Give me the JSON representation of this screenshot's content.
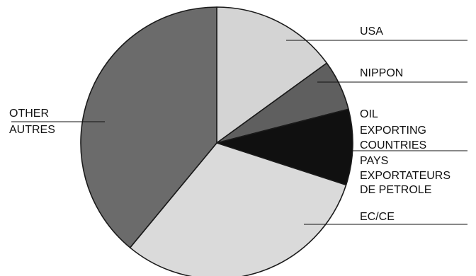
{
  "chart_data": {
    "type": "pie",
    "title": "",
    "start_angle_deg": 0,
    "direction": "clockwise",
    "slices": [
      {
        "labels": [
          "USA"
        ],
        "value": 15,
        "color": "#d4d4d4"
      },
      {
        "labels": [
          "NIPPON"
        ],
        "value": 6,
        "color": "#5f5f5f"
      },
      {
        "labels": [
          "OIL",
          "EXPORTING",
          "COUNTRIES",
          "PAYS",
          "EXPORTATEURS",
          "DE PETROLE"
        ],
        "value": 9,
        "color": "#101010"
      },
      {
        "labels": [
          "EC/CE"
        ],
        "value": 31,
        "color": "#dadada"
      },
      {
        "labels": [
          "OTHER",
          "AUTRES"
        ],
        "value": 39,
        "color": "#6b6b6b"
      }
    ]
  }
}
